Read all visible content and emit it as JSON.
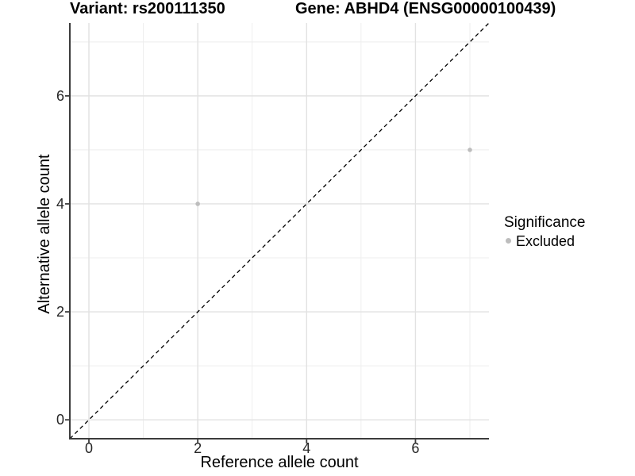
{
  "title": {
    "left": "Variant: rs200111350",
    "right": "Gene: ABHD4 (ENSG00000100439)"
  },
  "axes": {
    "x_label": "Reference allele count",
    "y_label": "Alternative allele count"
  },
  "legend": {
    "title": "Significance",
    "items": [
      {
        "label": "Excluded",
        "color": "#bdbdbd"
      }
    ]
  },
  "colors": {
    "background": "#ffffff",
    "axis_line": "#3c3c3c",
    "tick_mark": "#3c3c3c",
    "grid_major": "#e2e2e2",
    "grid_minor": "#eeeeee",
    "reference_line": "#000000",
    "point_excluded": "#bdbdbd",
    "text": "#000000"
  },
  "chart_data": {
    "type": "scatter",
    "title": "Variant: rs200111350   Gene: ABHD4 (ENSG00000100439)",
    "xlabel": "Reference allele count",
    "ylabel": "Alternative allele count",
    "xlim": [
      -0.35,
      7.35
    ],
    "ylim": [
      -0.35,
      7.35
    ],
    "x_ticks": [
      0,
      2,
      4,
      6
    ],
    "y_ticks": [
      0,
      2,
      4,
      6
    ],
    "x_minor_ticks": [
      1,
      3,
      5,
      7
    ],
    "y_minor_ticks": [
      1,
      3,
      5,
      7
    ],
    "grid": true,
    "legend_position": "right",
    "series": [
      {
        "name": "Excluded",
        "color": "#bdbdbd",
        "points": [
          {
            "x": 2,
            "y": 4
          },
          {
            "x": 7,
            "y": 5
          }
        ]
      }
    ],
    "reference_line": {
      "slope": 1,
      "intercept": 0,
      "style": "dashed",
      "color": "#000000"
    }
  }
}
